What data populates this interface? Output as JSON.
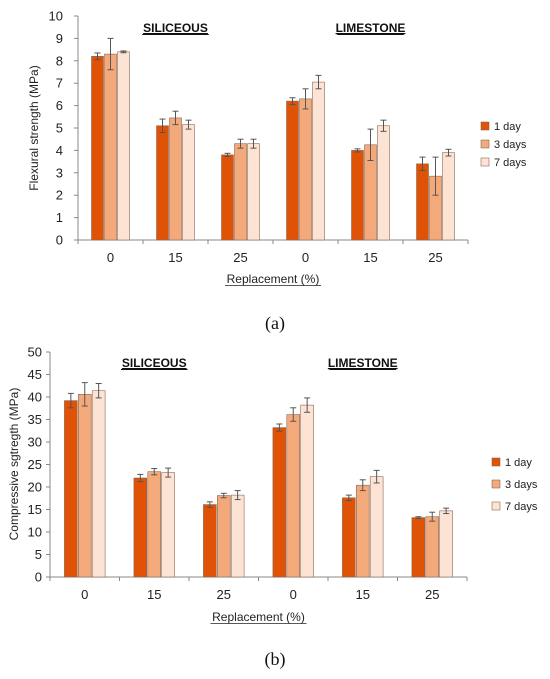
{
  "chart_data": [
    {
      "type": "bar",
      "panel_label": "(a)",
      "title": "",
      "xlabel": "Replacement (%)",
      "ylabel": "Flexural strength (MPa)",
      "ylim": [
        0,
        10
      ],
      "yticks": [
        0,
        1,
        2,
        3,
        4,
        5,
        6,
        7,
        8,
        9,
        10
      ],
      "grid": false,
      "legend_position": "right",
      "categories": [
        "0",
        "15",
        "25",
        "0",
        "15",
        "25"
      ],
      "group_labels": [
        {
          "text": "SILICEOUS",
          "over_categories": [
            0,
            2
          ]
        },
        {
          "text": "LIMESTONE",
          "over_categories": [
            3,
            5
          ]
        }
      ],
      "series": [
        {
          "name": "1 day",
          "color": "#e05206",
          "values": [
            8.2,
            5.1,
            3.8,
            6.2,
            4.0,
            3.4
          ],
          "errors": [
            0.15,
            0.3,
            0.07,
            0.15,
            0.07,
            0.3
          ]
        },
        {
          "name": "3 days",
          "color": "#f4a97b",
          "values": [
            8.3,
            5.45,
            4.3,
            6.3,
            4.25,
            2.85
          ],
          "errors": [
            0.7,
            0.3,
            0.2,
            0.45,
            0.7,
            0.85
          ]
        },
        {
          "name": "7 days",
          "color": "#fde3d3",
          "values": [
            8.4,
            5.15,
            4.3,
            7.05,
            5.1,
            3.9
          ],
          "errors": [
            0.04,
            0.2,
            0.2,
            0.3,
            0.25,
            0.15
          ]
        }
      ]
    },
    {
      "type": "bar",
      "panel_label": "(b)",
      "title": "",
      "xlabel": "Replacement (%)",
      "ylabel": "Compressive sgtregth (MPa)",
      "ylim": [
        0,
        50
      ],
      "yticks": [
        0,
        5,
        10,
        15,
        20,
        25,
        30,
        35,
        40,
        45,
        50
      ],
      "grid": false,
      "legend_position": "right",
      "categories": [
        "0",
        "15",
        "25",
        "0",
        "15",
        "25"
      ],
      "group_labels": [
        {
          "text": "SILICEOUS",
          "over_categories": [
            0,
            2
          ]
        },
        {
          "text": "LIMESTONE",
          "over_categories": [
            3,
            5
          ]
        }
      ],
      "series": [
        {
          "name": "1 day",
          "color": "#e05206",
          "values": [
            39.2,
            22.0,
            16.1,
            33.2,
            17.6,
            13.2
          ],
          "errors": [
            1.6,
            0.8,
            0.6,
            0.8,
            0.6,
            0.2
          ]
        },
        {
          "name": "3 days",
          "color": "#f4a97b",
          "values": [
            40.6,
            23.4,
            18.1,
            36.1,
            20.4,
            13.4
          ],
          "errors": [
            2.6,
            0.7,
            0.5,
            1.5,
            1.2,
            1.0
          ]
        },
        {
          "name": "7 days",
          "color": "#fde3d3",
          "values": [
            41.4,
            23.2,
            18.2,
            38.2,
            22.3,
            14.7
          ],
          "errors": [
            1.6,
            1.0,
            1.0,
            1.6,
            1.4,
            0.6
          ]
        }
      ]
    }
  ]
}
